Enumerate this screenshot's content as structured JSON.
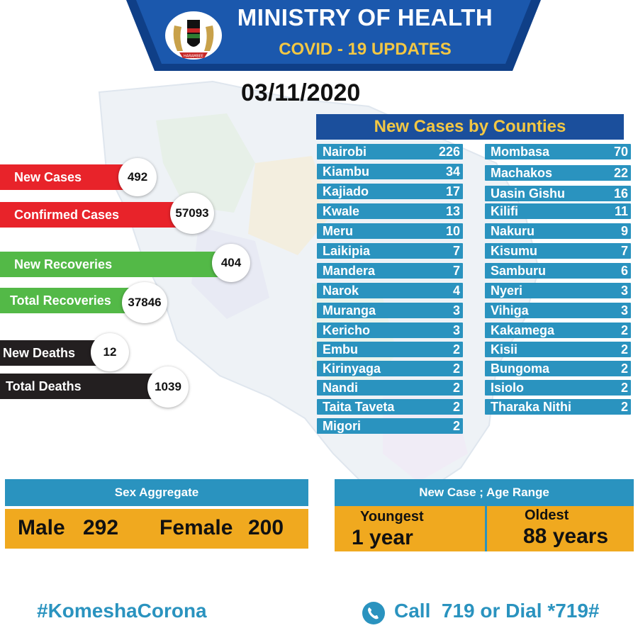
{
  "header": {
    "title": "MINISTRY OF HEALTH",
    "subtitle": "COVID - 19 UPDATES",
    "date": "03/11/2020",
    "emblem_icon": "kenya-coat-of-arms-icon",
    "emblem_text": "HARAMBEE"
  },
  "stats": [
    {
      "label": "New Cases",
      "value": "492",
      "color": "#e8232a"
    },
    {
      "label": "Confirmed Cases",
      "value": "57093",
      "color": "#e8232a"
    },
    {
      "label": "New Recoveries",
      "value": "404",
      "color": "#53b947"
    },
    {
      "label": "Total Recoveries",
      "value": "37846",
      "color": "#53b947"
    },
    {
      "label": "New Deaths",
      "value": "12",
      "color": "#231f20"
    },
    {
      "label": "Total Deaths",
      "value": "1039",
      "color": "#231f20"
    }
  ],
  "counties": {
    "title": "New Cases by Counties",
    "left": [
      {
        "name": "Nairobi",
        "cases": "226"
      },
      {
        "name": "Kiambu",
        "cases": "34"
      },
      {
        "name": "Kajiado",
        "cases": "17"
      },
      {
        "name": "Kwale",
        "cases": "13"
      },
      {
        "name": "Meru",
        "cases": "10"
      },
      {
        "name": "Laikipia",
        "cases": "7"
      },
      {
        "name": "Mandera",
        "cases": "7"
      },
      {
        "name": "Narok",
        "cases": "4"
      },
      {
        "name": "Muranga",
        "cases": "3"
      },
      {
        "name": "Kericho",
        "cases": "3"
      },
      {
        "name": "Embu",
        "cases": "2"
      },
      {
        "name": "Kirinyaga",
        "cases": "2"
      },
      {
        "name": "Nandi",
        "cases": "2"
      },
      {
        "name": "Taita Taveta",
        "cases": "2"
      },
      {
        "name": "Migori",
        "cases": "2"
      }
    ],
    "right": [
      {
        "name": "Mombasa",
        "cases": "70"
      },
      {
        "name": "Machakos",
        "cases": "22"
      },
      {
        "name": "Uasin Gishu",
        "cases": "16"
      },
      {
        "name": "Kilifi",
        "cases": "11"
      },
      {
        "name": "Nakuru",
        "cases": "9"
      },
      {
        "name": "Kisumu",
        "cases": "7"
      },
      {
        "name": "Samburu",
        "cases": "6"
      },
      {
        "name": "Nyeri",
        "cases": "3"
      },
      {
        "name": "Vihiga",
        "cases": "3"
      },
      {
        "name": "Kakamega",
        "cases": "2"
      },
      {
        "name": "Kisii",
        "cases": "2"
      },
      {
        "name": "Bungoma",
        "cases": "2"
      },
      {
        "name": "Isiolo",
        "cases": "2"
      },
      {
        "name": "Tharaka Nithi",
        "cases": "2"
      }
    ]
  },
  "sex_aggregate": {
    "title": "Sex Aggregate",
    "male_label": "Male",
    "male_value": "292",
    "female_label": "Female",
    "female_value": "200"
  },
  "age_range": {
    "title": "New Case ; Age Range",
    "youngest_label": "Youngest",
    "youngest_value": "1 year",
    "oldest_label": "Oldest",
    "oldest_value": "88 years"
  },
  "footer": {
    "hashtag": "#KomeshaCorona",
    "call_text": "Call  719 or Dial *719#",
    "phone_icon": "phone-icon"
  },
  "colors": {
    "banner_blue": "#1b4f9c",
    "panel_blue": "#2a93bf",
    "accent_yellow": "#f2c744",
    "orange": "#f0a91f"
  }
}
